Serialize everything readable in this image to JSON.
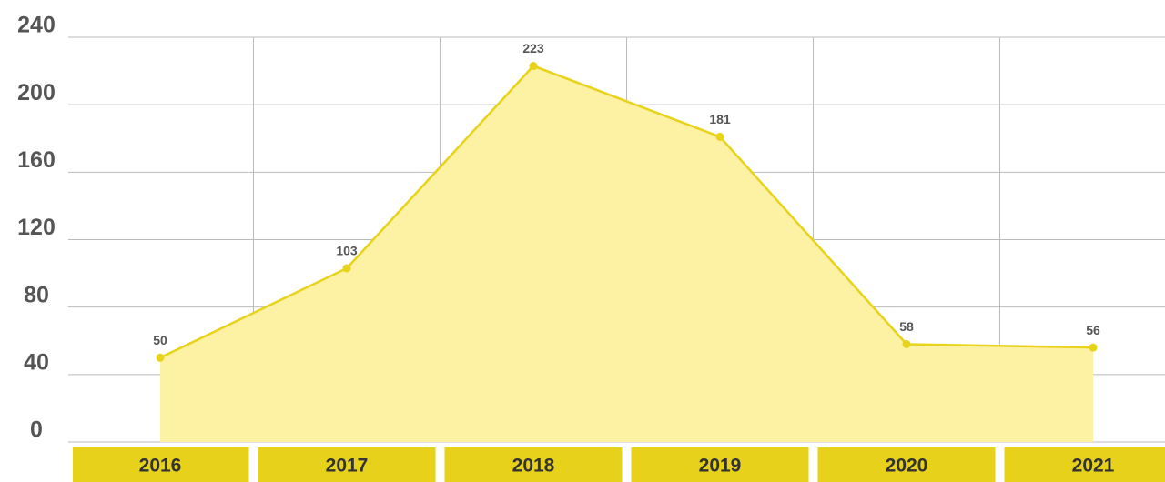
{
  "chart_data": {
    "type": "area",
    "categories": [
      "2016",
      "2017",
      "2018",
      "2019",
      "2020",
      "2021"
    ],
    "values": [
      50,
      103,
      223,
      181,
      58,
      56
    ],
    "color": "#e8d21a",
    "fill_color": "#fdf1a4",
    "band_color": "#e8d11a",
    "ylim": [
      0,
      240
    ],
    "yticks": [
      0,
      40,
      80,
      120,
      160,
      200,
      240
    ],
    "grid": true
  }
}
